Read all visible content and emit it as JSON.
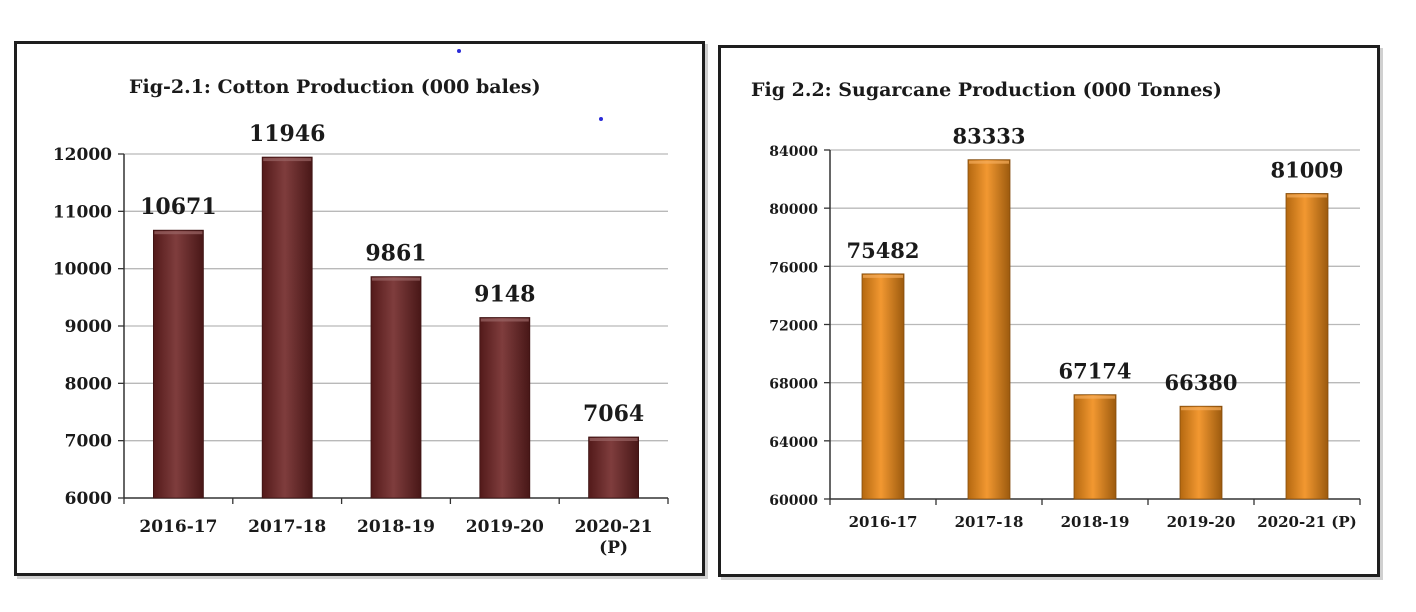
{
  "chart_data": [
    {
      "type": "bar",
      "title": "Fig-2.1: Cotton Production (000 bales)",
      "categories": [
        "2016-17",
        "2017-18",
        "2018-19",
        "2019-20",
        "2020-21 (P)"
      ],
      "category_lines": [
        [
          "2016-17"
        ],
        [
          "2017-18"
        ],
        [
          "2018-19"
        ],
        [
          "2019-20"
        ],
        [
          "2020-21",
          "(P)"
        ]
      ],
      "values": [
        10671,
        11946,
        9861,
        9148,
        7064
      ],
      "ylim": [
        6000,
        12000
      ],
      "yticks": [
        6000,
        7000,
        8000,
        9000,
        10000,
        11000,
        12000
      ],
      "xlabel": "",
      "ylabel": "",
      "grid": true,
      "legend": "none",
      "bar_color": "#6e2323"
    },
    {
      "type": "bar",
      "title": "Fig 2.2: Sugarcane Production (000 Tonnes)",
      "categories": [
        "2016-17",
        "2017-18",
        "2018-19",
        "2019-20",
        "2020-21 (P)"
      ],
      "category_lines": [
        [
          "2016-17"
        ],
        [
          "2017-18"
        ],
        [
          "2018-19"
        ],
        [
          "2019-20"
        ],
        [
          "2020-21 (P)"
        ]
      ],
      "values": [
        75482,
        83333,
        67174,
        66380,
        81009
      ],
      "ylim": [
        60000,
        84000
      ],
      "yticks": [
        60000,
        64000,
        68000,
        72000,
        76000,
        80000,
        84000
      ],
      "xlabel": "",
      "ylabel": "",
      "grid": true,
      "legend": "none",
      "bar_color": "#f08a15"
    }
  ]
}
